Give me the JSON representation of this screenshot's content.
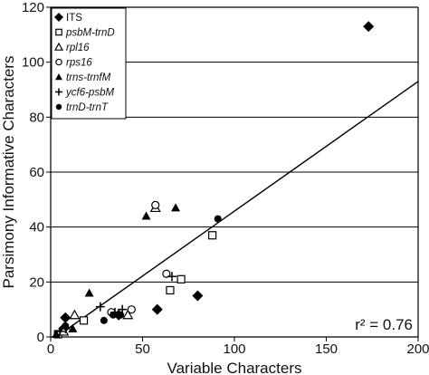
{
  "chart_data": {
    "type": "scatter",
    "xlabel": "Variable Characters",
    "ylabel": "Parsimony Informative Characters",
    "xlim": [
      0,
      200
    ],
    "ylim": [
      0,
      120
    ],
    "x_ticks": [
      "0",
      "50",
      "100",
      "150",
      "200"
    ],
    "y_ticks": [
      "0",
      "20",
      "40",
      "60",
      "80",
      "100",
      "120"
    ],
    "grid": "horizontal",
    "legend_position": "top-left",
    "annotation": "r² = 0.76",
    "trendline": {
      "x": [
        3,
        200
      ],
      "y": [
        0,
        93
      ]
    },
    "series": [
      {
        "name": "ITS",
        "marker": "filled-diamond",
        "x": [
          7,
          8,
          37,
          58,
          80,
          173
        ],
        "y": [
          3,
          7,
          8,
          10,
          15,
          113
        ]
      },
      {
        "name": "psbM-trnD",
        "marker": "open-square",
        "x": [
          4,
          18,
          65,
          71,
          88
        ],
        "y": [
          1,
          6,
          17,
          21,
          37
        ]
      },
      {
        "name": "rpl16",
        "marker": "open-triangle",
        "x": [
          7,
          13,
          42,
          57
        ],
        "y": [
          2,
          8,
          8,
          47
        ]
      },
      {
        "name": "rps16",
        "marker": "open-circle",
        "x": [
          33,
          44,
          57,
          63
        ],
        "y": [
          9,
          10,
          48,
          23
        ]
      },
      {
        "name": "trns-trnfM",
        "marker": "filled-triangle",
        "x": [
          3,
          12,
          21,
          52,
          68
        ],
        "y": [
          1,
          3,
          16,
          44,
          47
        ]
      },
      {
        "name": "ycf6-psbM",
        "marker": "plus",
        "x": [
          5,
          8,
          27,
          35,
          39,
          66
        ],
        "y": [
          2,
          3,
          11,
          9,
          10,
          22
        ]
      },
      {
        "name": "trnD-trnT",
        "marker": "filled-circle",
        "x": [
          8,
          29,
          34,
          38,
          91
        ],
        "y": [
          4,
          6,
          8,
          8,
          43
        ]
      }
    ]
  }
}
